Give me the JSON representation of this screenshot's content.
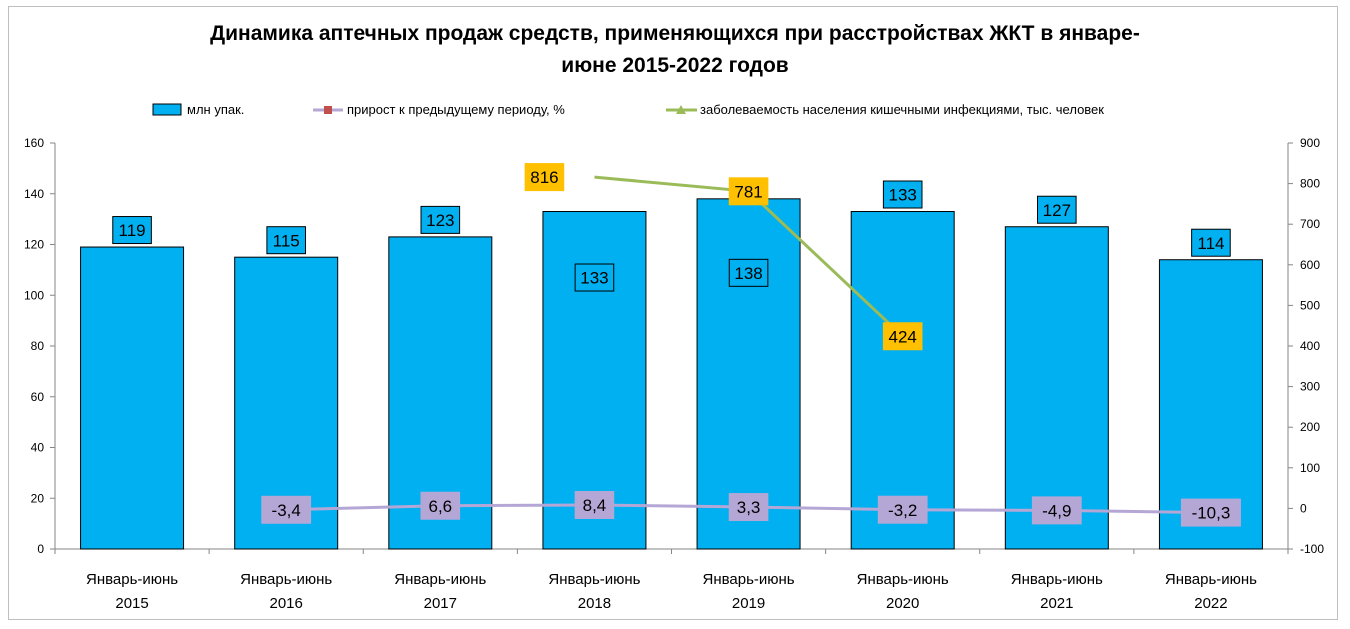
{
  "chart_data": {
    "title_line1": "Динамика аптечных продаж средств, применяющихся при расстройствах ЖКТ в январе-",
    "title_line2": "июне 2015-2022 годов",
    "categories": [
      [
        "Январь-июнь",
        "2015"
      ],
      [
        "Январь-июнь",
        "2016"
      ],
      [
        "Январь-июнь",
        "2017"
      ],
      [
        "Январь-июнь",
        "2018"
      ],
      [
        "Январь-июнь",
        "2019"
      ],
      [
        "Январь-июнь",
        "2020"
      ],
      [
        "Январь-июнь",
        "2021"
      ],
      [
        "Январь-июнь",
        "2022"
      ]
    ],
    "bars": {
      "type": "bar",
      "name": "млн упак.",
      "values": [
        119,
        115,
        123,
        133,
        138,
        133,
        127,
        114
      ],
      "labels": [
        "119",
        "115",
        "123",
        "133",
        "138",
        "133",
        "127",
        "114"
      ],
      "color": "#00b0f0"
    },
    "growth": {
      "type": "line",
      "name": "прирост к предыдущему периоду, %",
      "values": [
        null,
        -3.4,
        6.6,
        8.4,
        3.3,
        -3.2,
        -4.9,
        -10.3
      ],
      "labels": [
        "",
        "-3,4",
        "6,6",
        "8,4",
        "3,3",
        "-3,2",
        "-4,9",
        "-10,3"
      ],
      "color": "#b4a7d6",
      "legend_marker_color": "#c0504d",
      "label_bg": "#b4a7d6"
    },
    "incidence": {
      "type": "line",
      "name": "заболеваемость населения кишечными инфекциями, тыс. человек",
      "values": [
        null,
        null,
        null,
        816,
        781,
        424,
        null,
        null
      ],
      "labels": [
        "",
        "",
        "",
        "816",
        "781",
        "424",
        "",
        ""
      ],
      "color": "#9bbb59",
      "label_bg": "#ffc000"
    },
    "y_left": {
      "min": 0,
      "max": 160,
      "ticks": [
        "0",
        "20",
        "40",
        "60",
        "80",
        "100",
        "120",
        "140",
        "160"
      ]
    },
    "y_right": {
      "min": -100,
      "max": 900,
      "ticks": [
        "-100",
        "0",
        "100",
        "200",
        "300",
        "400",
        "500",
        "600",
        "700",
        "800",
        "900"
      ]
    },
    "grid": false,
    "legend": "top"
  }
}
